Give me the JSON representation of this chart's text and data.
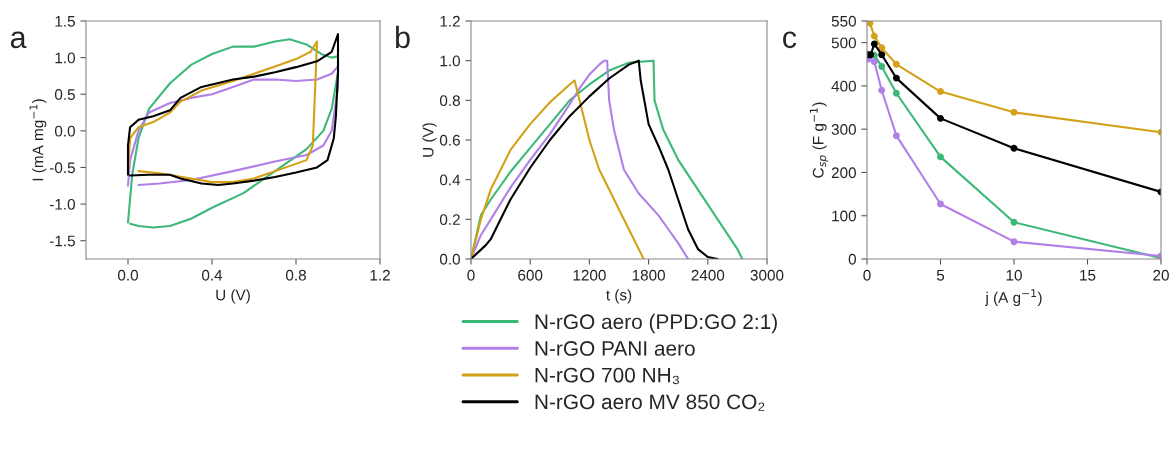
{
  "chart_data": [
    {
      "type": "line",
      "annotations": [
        "a"
      ],
      "xlabel": "U (V)",
      "ylabel": "I (mA mg$^{−1}$)",
      "xlim": [
        -0.2,
        1.2
      ],
      "xticks": [
        {
          "value": 0,
          "label": "0.0"
        },
        0.4,
        0.8,
        1.2
      ],
      "ylim": [
        -1.75,
        1.5
      ],
      "yticks": [
        -1.5,
        {
          "value": -1,
          "label": "-1.0"
        },
        -0.5,
        {
          "value": 0,
          "label": "0.0"
        },
        0.5,
        {
          "value": 1,
          "label": "1.0"
        },
        1.5
      ],
      "grid": false,
      "legend": "bottom",
      "marker": "none",
      "line_style": "solid",
      "series": [
        {
          "name": "N-rGO aero (PPD:GO 2:1)",
          "color": "#3cb878",
          "x": [
            0,
            0.02,
            0.05,
            0.1,
            0.2,
            0.3,
            0.4,
            0.5,
            0.6,
            0.7,
            0.77,
            0.85,
            0.92,
            0.97,
            1.0,
            1.0,
            0.97,
            0.93,
            0.85,
            0.7,
            0.55,
            0.4,
            0.3,
            0.2,
            0.12,
            0.05,
            0.01
          ],
          "values": [
            -1.25,
            -0.6,
            -0.1,
            0.3,
            0.65,
            0.9,
            1.05,
            1.15,
            1.15,
            1.22,
            1.25,
            1.18,
            1.05,
            1.0,
            1.02,
            0.8,
            0.3,
            0.0,
            -0.25,
            -0.55,
            -0.85,
            -1.05,
            -1.2,
            -1.3,
            -1.32,
            -1.3,
            -1.27
          ]
        },
        {
          "name": "N-rGO PANI aero",
          "color": "#b07fe8",
          "x": [
            0,
            0.01,
            0.05,
            0.1,
            0.2,
            0.3,
            0.4,
            0.5,
            0.6,
            0.7,
            0.8,
            0.9,
            0.97,
            1.0,
            1.0,
            0.97,
            0.93,
            0.85,
            0.7,
            0.5,
            0.3,
            0.15,
            0.05
          ],
          "values": [
            -0.75,
            -0.4,
            0.0,
            0.25,
            0.38,
            0.45,
            0.5,
            0.6,
            0.7,
            0.7,
            0.68,
            0.7,
            0.78,
            0.88,
            0.6,
            0.0,
            -0.2,
            -0.33,
            -0.42,
            -0.55,
            -0.67,
            -0.72,
            -0.74
          ]
        },
        {
          "name": "N-rGO 700 NH₃",
          "color": "#d4a017",
          "x": [
            0,
            0.01,
            0.05,
            0.12,
            0.2,
            0.25,
            0.35,
            0.5,
            0.6,
            0.7,
            0.8,
            0.87,
            0.9,
            0.89,
            0.88,
            0.85,
            0.7,
            0.6,
            0.5,
            0.4,
            0.3,
            0.15,
            0.05
          ],
          "values": [
            -0.55,
            -0.1,
            0.05,
            0.12,
            0.25,
            0.4,
            0.55,
            0.68,
            0.78,
            0.88,
            0.98,
            1.08,
            1.22,
            0.5,
            -0.2,
            -0.4,
            -0.55,
            -0.65,
            -0.7,
            -0.7,
            -0.65,
            -0.58,
            -0.55
          ]
        },
        {
          "name": "N-rGO aero MV 850 CO₂",
          "color": "#000000",
          "x": [
            0,
            0.0,
            0.01,
            0.05,
            0.12,
            0.2,
            0.25,
            0.35,
            0.5,
            0.6,
            0.7,
            0.8,
            0.9,
            0.97,
            1.0,
            1.0,
            0.99,
            0.98,
            0.95,
            0.9,
            0.8,
            0.7,
            0.6,
            0.5,
            0.43,
            0.35,
            0.25,
            0.2,
            0.1,
            0.01
          ],
          "values": [
            -0.6,
            -0.2,
            0.05,
            0.15,
            0.2,
            0.28,
            0.45,
            0.6,
            0.7,
            0.74,
            0.8,
            0.87,
            0.95,
            1.08,
            1.32,
            0.8,
            0.2,
            -0.1,
            -0.4,
            -0.5,
            -0.57,
            -0.63,
            -0.68,
            -0.72,
            -0.74,
            -0.72,
            -0.65,
            -0.6,
            -0.6,
            -0.61
          ]
        }
      ]
    },
    {
      "type": "line",
      "annotations": [
        "b"
      ],
      "xlabel": "t (s)",
      "ylabel": "U (V)",
      "xlim": [
        0,
        3000
      ],
      "xticks": [
        0,
        600,
        1200,
        1800,
        2400,
        3000
      ],
      "ylim": [
        0,
        1.2
      ],
      "yticks": [
        {
          "value": 0,
          "label": "0.0"
        },
        0.2,
        0.4,
        0.6,
        0.8,
        {
          "value": 1,
          "label": "1.0"
        },
        1.2
      ],
      "grid": false,
      "marker": "none",
      "line_style": "solid",
      "series": [
        {
          "color": "#3cb878",
          "x": [
            0,
            100,
            200,
            400,
            600,
            800,
            1000,
            1200,
            1400,
            1600,
            1850,
            1860,
            1950,
            2100,
            2300,
            2500,
            2700,
            2750
          ],
          "values": [
            0,
            0.22,
            0.3,
            0.44,
            0.56,
            0.68,
            0.8,
            0.88,
            0.95,
            0.99,
            1.0,
            0.8,
            0.65,
            0.5,
            0.35,
            0.2,
            0.05,
            0
          ]
        },
        {
          "color": "#b07fe8",
          "x": [
            0,
            100,
            200,
            400,
            600,
            800,
            1000,
            1100,
            1200,
            1300,
            1350,
            1380,
            1400,
            1450,
            1550,
            1700,
            1900,
            2000,
            2100,
            2200
          ],
          "values": [
            0,
            0.12,
            0.2,
            0.36,
            0.5,
            0.63,
            0.78,
            0.86,
            0.93,
            0.98,
            1.0,
            1.0,
            0.8,
            0.65,
            0.45,
            0.33,
            0.22,
            0.15,
            0.08,
            0.0
          ]
        },
        {
          "color": "#d4a017",
          "x": [
            0,
            100,
            200,
            400,
            600,
            800,
            1000,
            1050,
            1100,
            1200,
            1300,
            1400,
            1500,
            1600,
            1750
          ],
          "values": [
            0,
            0.2,
            0.35,
            0.55,
            0.68,
            0.79,
            0.88,
            0.9,
            0.8,
            0.6,
            0.45,
            0.35,
            0.25,
            0.15,
            0
          ]
        },
        {
          "color": "#000000",
          "x": [
            0,
            150,
            200,
            300,
            400,
            600,
            800,
            1000,
            1200,
            1400,
            1600,
            1700,
            1720,
            1800,
            1900,
            2000,
            2100,
            2200,
            2300,
            2400,
            2500
          ],
          "values": [
            0,
            0.07,
            0.1,
            0.2,
            0.3,
            0.46,
            0.6,
            0.72,
            0.82,
            0.91,
            0.98,
            1.0,
            0.9,
            0.68,
            0.57,
            0.45,
            0.3,
            0.15,
            0.05,
            0.01,
            0.0
          ]
        }
      ]
    },
    {
      "type": "line",
      "annotations": [
        "c"
      ],
      "xlabel": "j (A g$^{−1}$)",
      "ylabel": "C$_{sp}$ (F g$^{−1}$)",
      "xlim": [
        0,
        20
      ],
      "xticks": [
        0,
        5,
        10,
        15,
        20
      ],
      "ylim": [
        0,
        550
      ],
      "yticks": [
        0,
        100,
        200,
        300,
        400,
        500,
        550
      ],
      "grid": false,
      "marker": "circle",
      "line_style": "solid",
      "series": [
        {
          "color": "#3cb878",
          "x": [
            0.1,
            0.5,
            1,
            2,
            5,
            10,
            20
          ],
          "values": [
            465,
            471,
            445,
            383,
            236,
            85,
            2
          ]
        },
        {
          "color": "#b07fe8",
          "x": [
            0.1,
            0.5,
            1,
            2,
            5,
            10,
            20
          ],
          "values": [
            462,
            456,
            390,
            285,
            127,
            40,
            7
          ]
        },
        {
          "color": "#d4a017",
          "x": [
            0.2,
            0.5,
            1,
            2,
            5,
            10,
            20
          ],
          "values": [
            545,
            515,
            488,
            450,
            387,
            339,
            293
          ]
        },
        {
          "color": "#000000",
          "x": [
            0.1,
            0.25,
            0.5,
            1,
            2,
            5,
            10,
            20
          ],
          "values": [
            472,
            472,
            497,
            472,
            418,
            325,
            256,
            155
          ]
        }
      ]
    }
  ]
}
